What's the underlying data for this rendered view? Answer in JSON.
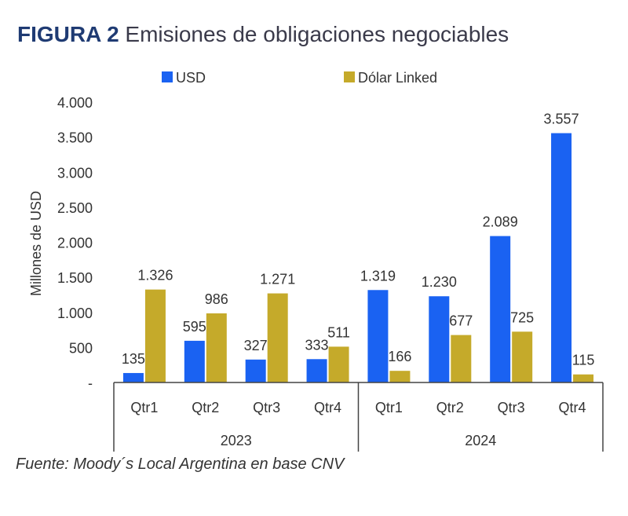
{
  "header": {
    "figure_label": "FIGURA 2",
    "title": "Emisiones de obligaciones negociables"
  },
  "source": "Fuente: Moody´s Local Argentina en base CNV",
  "chart_data": {
    "type": "bar",
    "title": "Emisiones de obligaciones negociables",
    "ylabel": "Millones de USD",
    "xlabel": "",
    "ylim": [
      0,
      4000
    ],
    "yticks": [
      0,
      500,
      1000,
      1500,
      2000,
      2500,
      3000,
      3500,
      4000
    ],
    "ytick_labels": [
      "-",
      "500",
      "1.000",
      "1.500",
      "2.000",
      "2.500",
      "3.000",
      "3.500",
      "4.000"
    ],
    "categories": [
      "Qtr1",
      "Qtr2",
      "Qtr3",
      "Qtr4",
      "Qtr1",
      "Qtr2",
      "Qtr3",
      "Qtr4"
    ],
    "groups": [
      {
        "label": "2023",
        "start": 0,
        "end": 3
      },
      {
        "label": "2024",
        "start": 4,
        "end": 7
      }
    ],
    "series": [
      {
        "name": "USD",
        "color": "#1a62f2",
        "values": [
          135,
          595,
          327,
          333,
          1319,
          1230,
          2089,
          3557
        ],
        "labels": [
          "135",
          "595",
          "327",
          "333",
          "1.319",
          "1.230",
          "2.089",
          "3.557"
        ]
      },
      {
        "name": "Dólar Linked",
        "color": "#c5aa2a",
        "values": [
          1326,
          986,
          1271,
          511,
          166,
          677,
          725,
          115
        ],
        "labels": [
          "1.326",
          "986",
          "1.271",
          "511",
          "166",
          "677",
          "725",
          "115"
        ]
      }
    ],
    "legend": "top",
    "grid": false
  }
}
